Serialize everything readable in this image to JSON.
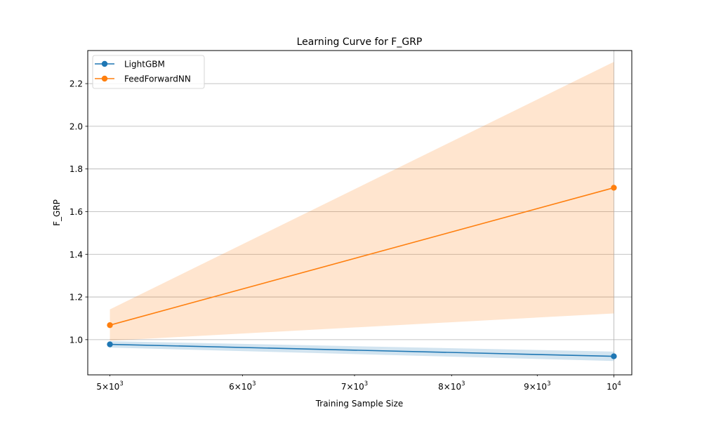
{
  "chart_data": {
    "type": "line",
    "title": "Learning Curve for F_GRP",
    "xlabel": "Training Sample Size",
    "ylabel": "F_GRP",
    "xscale": "log",
    "xlim": [
      4850,
      10250
    ],
    "ylim": [
      0.835,
      2.355
    ],
    "grid": true,
    "legend_position": "top-left",
    "x": [
      5000,
      10000
    ],
    "x_ticks": [
      {
        "value": 5000,
        "base": "5",
        "exp": "3"
      },
      {
        "value": 6000,
        "base": "6",
        "exp": "3"
      },
      {
        "value": 7000,
        "base": "7",
        "exp": "3"
      },
      {
        "value": 8000,
        "base": "8",
        "exp": "3"
      },
      {
        "value": 9000,
        "base": "9",
        "exp": "3"
      },
      {
        "value": 10000,
        "base": "",
        "exp": "4"
      }
    ],
    "y_ticks": [
      1.0,
      1.2,
      1.4,
      1.6,
      1.8,
      2.0,
      2.2
    ],
    "y_tick_labels": [
      "1.0",
      "1.2",
      "1.4",
      "1.6",
      "1.8",
      "2.0",
      "2.2"
    ],
    "series": [
      {
        "name": "LightGBM",
        "color": "#1f77b4",
        "fill_color": "#1f77b4",
        "values": [
          0.978,
          0.922
        ],
        "lower": [
          0.963,
          0.9
        ],
        "upper": [
          0.993,
          0.944
        ]
      },
      {
        "name": "FeedForwardNN",
        "color": "#ff7f0e",
        "fill_color": "#ff7f0e",
        "values": [
          1.068,
          1.712
        ],
        "lower": [
          0.995,
          1.123
        ],
        "upper": [
          1.142,
          2.302
        ]
      }
    ]
  }
}
